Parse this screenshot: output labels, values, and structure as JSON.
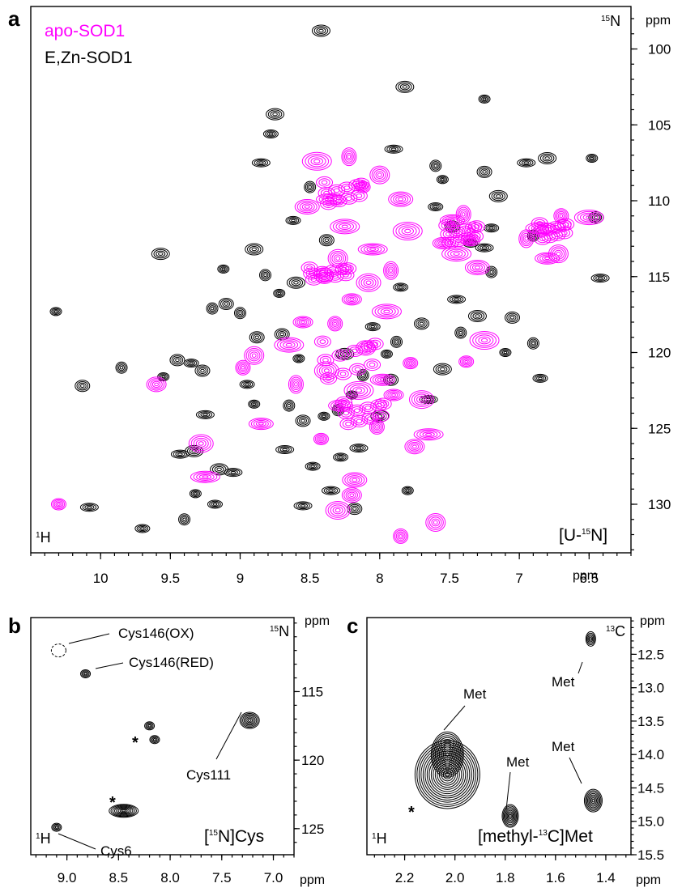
{
  "chart_data": [
    {
      "panel": "a",
      "type": "scatter",
      "title": "",
      "corner_label": "[U-15N]",
      "x_nucleus": "1H",
      "y_nucleus": "15N",
      "x_unit": "ppm",
      "y_unit": "ppm",
      "xlim": [
        10.5,
        6.2
      ],
      "ylim": [
        97.2,
        133.2
      ],
      "x_ticks": [
        10,
        9.5,
        9,
        8.5,
        8,
        7.5,
        7,
        6.5
      ],
      "y_ticks": [
        100,
        105,
        110,
        115,
        120,
        125,
        130
      ],
      "legend": [
        "apo-SOD1",
        "E,Zn-SOD1"
      ],
      "colors": {
        "apo": "#ff00ff",
        "ezn": "#000000"
      },
      "series": [
        {
          "name": "E,Zn-SOD1",
          "points": [
            [
              10.32,
              117.3
            ],
            [
              10.13,
              122.2
            ],
            [
              10.08,
              130.2
            ],
            [
              9.85,
              121.0
            ],
            [
              9.7,
              131.6
            ],
            [
              9.57,
              113.5
            ],
            [
              9.55,
              121.6
            ],
            [
              9.45,
              120.5
            ],
            [
              9.43,
              126.7
            ],
            [
              9.4,
              131.0
            ],
            [
              9.35,
              120.7
            ],
            [
              9.33,
              126.5
            ],
            [
              9.32,
              129.3
            ],
            [
              9.27,
              121.2
            ],
            [
              9.25,
              124.1
            ],
            [
              9.2,
              117.1
            ],
            [
              9.18,
              130.0
            ],
            [
              9.15,
              127.7
            ],
            [
              9.12,
              114.5
            ],
            [
              9.1,
              116.8
            ],
            [
              9.05,
              127.9
            ],
            [
              9.0,
              117.4
            ],
            [
              8.95,
              122.1
            ],
            [
              8.9,
              113.2
            ],
            [
              8.9,
              123.4
            ],
            [
              8.88,
              119.0
            ],
            [
              8.85,
              107.5
            ],
            [
              8.82,
              114.9
            ],
            [
              8.78,
              105.6
            ],
            [
              8.75,
              104.3
            ],
            [
              8.72,
              116.1
            ],
            [
              8.7,
              118.8
            ],
            [
              8.68,
              126.4
            ],
            [
              8.65,
              123.5
            ],
            [
              8.62,
              111.3
            ],
            [
              8.6,
              115.4
            ],
            [
              8.58,
              120.4
            ],
            [
              8.55,
              124.5
            ],
            [
              8.55,
              130.1
            ],
            [
              8.5,
              109.1
            ],
            [
              8.48,
              127.5
            ],
            [
              8.42,
              98.8
            ],
            [
              8.4,
              124.2
            ],
            [
              8.38,
              112.6
            ],
            [
              8.35,
              129.1
            ],
            [
              8.3,
              123.8
            ],
            [
              8.28,
              126.9
            ],
            [
              8.25,
              120.1
            ],
            [
              8.2,
              122.8
            ],
            [
              8.18,
              130.3
            ],
            [
              8.15,
              126.3
            ],
            [
              8.12,
              121.5
            ],
            [
              8.05,
              118.3
            ],
            [
              8.0,
              124.2
            ],
            [
              7.95,
              120.1
            ],
            [
              7.92,
              121.8
            ],
            [
              7.9,
              106.6
            ],
            [
              7.88,
              119.3
            ],
            [
              7.85,
              115.7
            ],
            [
              7.82,
              102.5
            ],
            [
              7.8,
              129.1
            ],
            [
              7.7,
              118.1
            ],
            [
              7.65,
              123.1
            ],
            [
              7.6,
              107.7
            ],
            [
              7.6,
              110.4
            ],
            [
              7.55,
              121.1
            ],
            [
              7.55,
              108.6
            ],
            [
              7.48,
              111.7
            ],
            [
              7.45,
              116.5
            ],
            [
              7.42,
              118.7
            ],
            [
              7.35,
              112.8
            ],
            [
              7.3,
              117.6
            ],
            [
              7.25,
              103.3
            ],
            [
              7.25,
              108.1
            ],
            [
              7.25,
              113.1
            ],
            [
              7.2,
              114.7
            ],
            [
              7.2,
              111.8
            ],
            [
              7.15,
              109.7
            ],
            [
              7.1,
              120.0
            ],
            [
              7.05,
              117.7
            ],
            [
              6.95,
              107.5
            ],
            [
              6.9,
              119.4
            ],
            [
              6.85,
              121.7
            ],
            [
              6.8,
              107.2
            ],
            [
              6.48,
              107.2
            ],
            [
              6.45,
              111.1
            ],
            [
              6.42,
              115.1
            ],
            [
              6.9,
              112.3
            ]
          ]
        },
        {
          "name": "apo-SOD1",
          "points": [
            [
              10.3,
              130.0
            ],
            [
              9.6,
              122.1
            ],
            [
              9.28,
              126.0
            ],
            [
              9.25,
              128.2
            ],
            [
              8.98,
              121.0
            ],
            [
              8.9,
              120.2
            ],
            [
              8.85,
              124.7
            ],
            [
              8.65,
              119.5
            ],
            [
              8.6,
              122.1
            ],
            [
              8.55,
              118.0
            ],
            [
              8.52,
              110.4
            ],
            [
              8.45,
              107.4
            ],
            [
              8.42,
              125.7
            ],
            [
              8.4,
              114.9
            ],
            [
              8.38,
              121.2
            ],
            [
              8.35,
              109.9
            ],
            [
              8.32,
              118.1
            ],
            [
              8.3,
              113.8
            ],
            [
              8.28,
              123.5
            ],
            [
              8.25,
              111.7
            ],
            [
              8.22,
              107.1
            ],
            [
              8.2,
              116.5
            ],
            [
              8.18,
              128.4
            ],
            [
              8.15,
              122.5
            ],
            [
              8.12,
              109.1
            ],
            [
              8.1,
              119.7
            ],
            [
              8.08,
              115.4
            ],
            [
              8.05,
              113.2
            ],
            [
              8.02,
              124.9
            ],
            [
              8.0,
              108.3
            ],
            [
              7.98,
              121.8
            ],
            [
              7.95,
              117.3
            ],
            [
              7.92,
              114.6
            ],
            [
              7.9,
              122.8
            ],
            [
              7.85,
              109.9
            ],
            [
              7.8,
              112.0
            ],
            [
              7.78,
              120.7
            ],
            [
              7.75,
              126.2
            ],
            [
              7.7,
              123.1
            ],
            [
              7.65,
              125.4
            ],
            [
              7.85,
              132.1
            ],
            [
              7.6,
              131.2
            ],
            [
              7.48,
              111.3
            ],
            [
              7.45,
              113.5
            ],
            [
              7.4,
              110.9
            ],
            [
              7.35,
              112.6
            ],
            [
              7.3,
              114.4
            ],
            [
              7.25,
              119.2
            ],
            [
              7.38,
              120.6
            ],
            [
              8.2,
              129.4
            ],
            [
              8.3,
              130.4
            ],
            [
              6.85,
              111.8
            ],
            [
              6.7,
              111.0
            ],
            [
              6.72,
              113.5
            ],
            [
              6.8,
              113.8
            ],
            [
              6.5,
              111.1
            ],
            [
              6.95,
              112.5
            ],
            [
              7.55,
              112.8
            ]
          ]
        }
      ]
    },
    {
      "panel": "b",
      "type": "scatter",
      "title": "",
      "corner_label": "[15N]Cys",
      "x_nucleus": "1H",
      "y_nucleus": "15N",
      "x_unit": "ppm",
      "y_unit": "ppm",
      "xlim": [
        9.35,
        6.8
      ],
      "ylim": [
        109.6,
        126.9
      ],
      "x_ticks": [
        "9.0",
        "8.5",
        "8.0",
        "7.5",
        "7.0"
      ],
      "y_ticks": [
        115,
        120,
        125
      ],
      "points": [
        {
          "label": "Cys146(OX)",
          "x": 9.08,
          "y": 112.0,
          "dashed": true
        },
        {
          "label": "Cys146(RED)",
          "x": 8.82,
          "y": 113.7
        },
        {
          "label": "",
          "x": 8.2,
          "y": 117.5
        },
        {
          "label": "*",
          "x": 8.15,
          "y": 118.5
        },
        {
          "label": "Cys111",
          "x": 7.23,
          "y": 117.1
        },
        {
          "label": "*",
          "x": 8.45,
          "y": 123.7
        },
        {
          "label": "Cys6",
          "x": 9.1,
          "y": 124.9
        }
      ]
    },
    {
      "panel": "c",
      "type": "scatter",
      "title": "",
      "corner_label": "[methyl-13C]Met",
      "x_nucleus": "1H",
      "y_nucleus": "13C",
      "x_unit": "ppm",
      "y_unit": "ppm",
      "xlim": [
        2.35,
        1.3
      ],
      "ylim": [
        11.95,
        15.5
      ],
      "x_ticks": [
        "2.2",
        "2.0",
        "1.8",
        "1.6",
        "1.4"
      ],
      "y_ticks": [
        "12.5",
        "13.0",
        "13.5",
        "14.0",
        "14.5",
        "15.0",
        "15.5"
      ],
      "points": [
        {
          "label": "Met",
          "x": 1.46,
          "y": 12.27
        },
        {
          "label": "Met",
          "x": 2.03,
          "y": 14.0
        },
        {
          "label": "*",
          "x": 2.03,
          "y": 14.3
        },
        {
          "label": "Met",
          "x": 1.78,
          "y": 14.92
        },
        {
          "label": "Met",
          "x": 1.45,
          "y": 14.69
        }
      ]
    }
  ]
}
